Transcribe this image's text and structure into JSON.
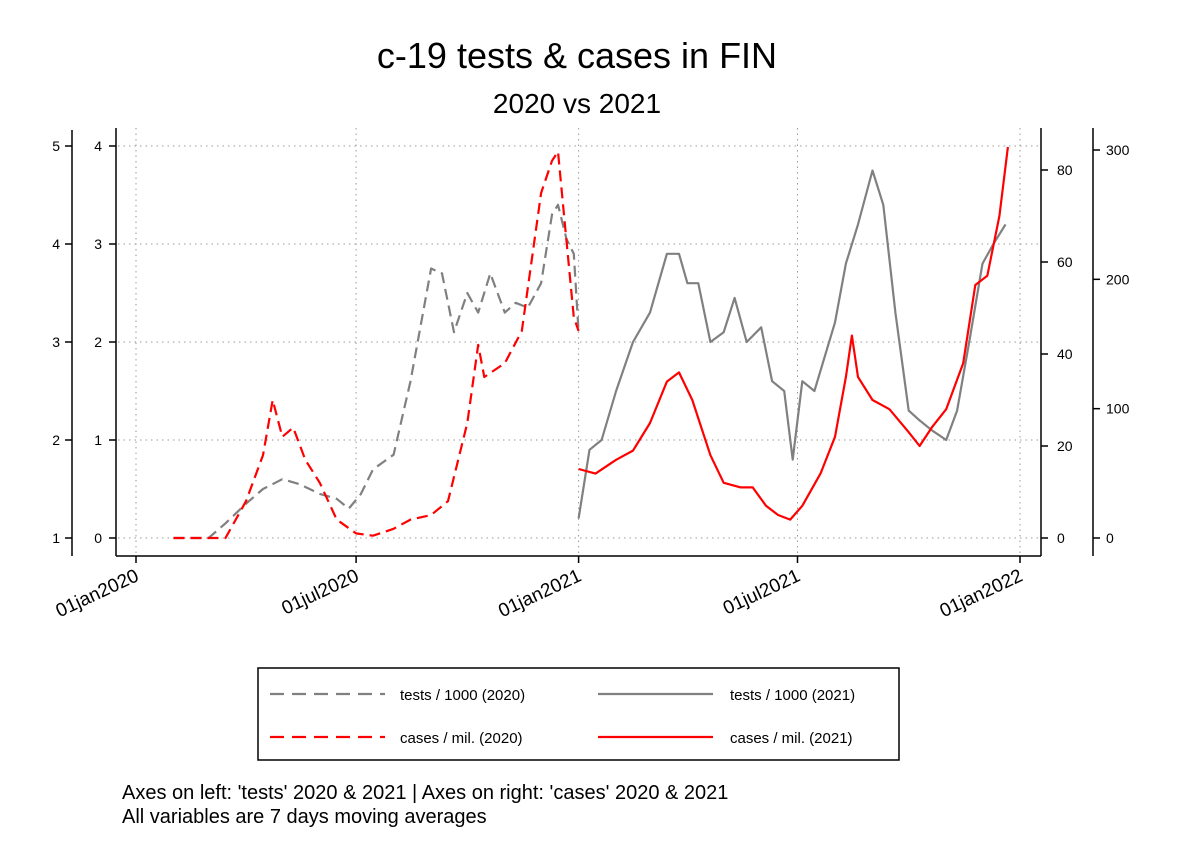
{
  "chart_data": {
    "type": "line",
    "title": "c-19 tests & cases in FIN",
    "subtitle": "2020 vs 2021",
    "x_axis": {
      "type": "date",
      "range": [
        "2020-01-01",
        "2022-01-01"
      ],
      "ticks": [
        "01jan2020",
        "01jul2020",
        "01jan2021",
        "01jul2021",
        "01jan2022"
      ]
    },
    "axes": {
      "left_outer": {
        "ticks": [
          1,
          2,
          3,
          4,
          5
        ],
        "range": [
          1,
          5
        ]
      },
      "left_inner": {
        "ticks": [
          0,
          1,
          2,
          3,
          4
        ],
        "range": [
          0,
          4
        ]
      },
      "right_inner": {
        "ticks": [
          0,
          20,
          40,
          60,
          80
        ],
        "range": [
          0,
          85
        ]
      },
      "right_outer": {
        "ticks": [
          0,
          100,
          200,
          300
        ],
        "range": [
          0,
          300
        ]
      }
    },
    "grid": true,
    "legend_position": "bottom",
    "series": [
      {
        "name": "tests / 1000 (2020)",
        "axis": "left_outer",
        "color": "#808080",
        "style": "dashed",
        "points": [
          [
            "2020-02-01",
            1.0
          ],
          [
            "2020-03-01",
            1.0
          ],
          [
            "2020-03-15",
            1.15
          ],
          [
            "2020-04-01",
            1.35
          ],
          [
            "2020-04-15",
            1.5
          ],
          [
            "2020-05-01",
            1.6
          ],
          [
            "2020-05-15",
            1.55
          ],
          [
            "2020-06-01",
            1.45
          ],
          [
            "2020-06-15",
            1.4
          ],
          [
            "2020-06-25",
            1.3
          ],
          [
            "2020-07-05",
            1.45
          ],
          [
            "2020-07-15",
            1.7
          ],
          [
            "2020-08-01",
            1.85
          ],
          [
            "2020-08-15",
            2.6
          ],
          [
            "2020-09-01",
            3.75
          ],
          [
            "2020-09-10",
            3.7
          ],
          [
            "2020-09-20",
            3.1
          ],
          [
            "2020-10-01",
            3.5
          ],
          [
            "2020-10-10",
            3.3
          ],
          [
            "2020-10-20",
            3.7
          ],
          [
            "2020-11-01",
            3.3
          ],
          [
            "2020-11-10",
            3.4
          ],
          [
            "2020-11-20",
            3.35
          ],
          [
            "2020-12-01",
            3.6
          ],
          [
            "2020-12-10",
            4.3
          ],
          [
            "2020-12-15",
            4.4
          ],
          [
            "2020-12-22",
            4.05
          ],
          [
            "2020-12-28",
            3.9
          ],
          [
            "2021-01-01",
            3.1
          ]
        ]
      },
      {
        "name": "cases / mil. (2020)",
        "axis": "right_inner",
        "color": "#ff0000",
        "style": "dashed",
        "points": [
          [
            "2020-02-01",
            0.0
          ],
          [
            "2020-03-15",
            0.0
          ],
          [
            "2020-04-01",
            8.0
          ],
          [
            "2020-04-15",
            18.0
          ],
          [
            "2020-04-23",
            30.0
          ],
          [
            "2020-05-01",
            22.0
          ],
          [
            "2020-05-10",
            24.0
          ],
          [
            "2020-05-20",
            17.0
          ],
          [
            "2020-06-01",
            12.0
          ],
          [
            "2020-06-15",
            4.0
          ],
          [
            "2020-07-01",
            1.0
          ],
          [
            "2020-07-15",
            0.5
          ],
          [
            "2020-08-01",
            2.0
          ],
          [
            "2020-08-15",
            4.0
          ],
          [
            "2020-09-01",
            5.0
          ],
          [
            "2020-09-15",
            8.0
          ],
          [
            "2020-10-01",
            25.0
          ],
          [
            "2020-10-10",
            42.0
          ],
          [
            "2020-10-15",
            35.0
          ],
          [
            "2020-11-01",
            38.0
          ],
          [
            "2020-11-15",
            45.0
          ],
          [
            "2020-12-01",
            75.0
          ],
          [
            "2020-12-10",
            82.0
          ],
          [
            "2020-12-15",
            84.0
          ],
          [
            "2020-12-20",
            70.0
          ],
          [
            "2020-12-28",
            48.0
          ],
          [
            "2021-01-01",
            45.0
          ]
        ]
      },
      {
        "name": "tests / 1000 (2021)",
        "axis": "left_inner",
        "color": "#808080",
        "style": "solid",
        "points": [
          [
            "2021-01-01",
            0.2
          ],
          [
            "2021-01-10",
            0.9
          ],
          [
            "2021-01-20",
            1.0
          ],
          [
            "2021-02-01",
            1.5
          ],
          [
            "2021-02-15",
            2.0
          ],
          [
            "2021-03-01",
            2.3
          ],
          [
            "2021-03-15",
            2.9
          ],
          [
            "2021-03-25",
            2.9
          ],
          [
            "2021-04-01",
            2.6
          ],
          [
            "2021-04-10",
            2.6
          ],
          [
            "2021-04-20",
            2.0
          ],
          [
            "2021-05-01",
            2.1
          ],
          [
            "2021-05-10",
            2.45
          ],
          [
            "2021-05-20",
            2.0
          ],
          [
            "2021-06-01",
            2.15
          ],
          [
            "2021-06-10",
            1.6
          ],
          [
            "2021-06-20",
            1.5
          ],
          [
            "2021-06-27",
            0.8
          ],
          [
            "2021-07-05",
            1.6
          ],
          [
            "2021-07-15",
            1.5
          ],
          [
            "2021-08-01",
            2.2
          ],
          [
            "2021-08-10",
            2.8
          ],
          [
            "2021-08-20",
            3.2
          ],
          [
            "2021-09-01",
            3.75
          ],
          [
            "2021-09-10",
            3.4
          ],
          [
            "2021-09-20",
            2.3
          ],
          [
            "2021-10-01",
            1.3
          ],
          [
            "2021-10-10",
            1.2
          ],
          [
            "2021-10-20",
            1.1
          ],
          [
            "2021-11-01",
            1.0
          ],
          [
            "2021-11-10",
            1.3
          ],
          [
            "2021-11-20",
            2.0
          ],
          [
            "2021-12-01",
            2.8
          ],
          [
            "2021-12-10",
            3.0
          ],
          [
            "2021-12-20",
            3.2
          ]
        ]
      },
      {
        "name": "cases / mil. (2021)",
        "axis": "right_inner",
        "color": "#ff0000",
        "style": "solid",
        "points": [
          [
            "2021-01-01",
            15.0
          ],
          [
            "2021-01-15",
            14.0
          ],
          [
            "2021-02-01",
            17.0
          ],
          [
            "2021-02-15",
            19.0
          ],
          [
            "2021-03-01",
            25.0
          ],
          [
            "2021-03-15",
            34.0
          ],
          [
            "2021-03-25",
            36.0
          ],
          [
            "2021-04-05",
            30.0
          ],
          [
            "2021-04-20",
            18.0
          ],
          [
            "2021-05-01",
            12.0
          ],
          [
            "2021-05-15",
            11.0
          ],
          [
            "2021-05-25",
            11.0
          ],
          [
            "2021-06-05",
            7.0
          ],
          [
            "2021-06-15",
            5.0
          ],
          [
            "2021-06-25",
            4.0
          ],
          [
            "2021-07-05",
            7.0
          ],
          [
            "2021-07-20",
            14.0
          ],
          [
            "2021-08-01",
            22.0
          ],
          [
            "2021-08-10",
            35.0
          ],
          [
            "2021-08-15",
            44.0
          ],
          [
            "2021-08-20",
            35.0
          ],
          [
            "2021-09-01",
            30.0
          ],
          [
            "2021-09-15",
            28.0
          ],
          [
            "2021-10-01",
            23.0
          ],
          [
            "2021-10-10",
            20.0
          ],
          [
            "2021-10-20",
            24.0
          ],
          [
            "2021-11-01",
            28.0
          ],
          [
            "2021-11-15",
            38.0
          ],
          [
            "2021-11-25",
            55.0
          ],
          [
            "2021-12-05",
            57.0
          ],
          [
            "2021-12-15",
            70.0
          ],
          [
            "2021-12-22",
            85.0
          ]
        ]
      }
    ],
    "legend": [
      {
        "label": "tests / 1000 (2020)",
        "color": "#808080",
        "style": "dashed"
      },
      {
        "label": "tests / 1000 (2021)",
        "color": "#808080",
        "style": "solid"
      },
      {
        "label": "cases / mil. (2020)",
        "color": "#ff0000",
        "style": "dashed"
      },
      {
        "label": "cases / mil. (2021)",
        "color": "#ff0000",
        "style": "solid"
      }
    ],
    "notes": [
      "Axes on left: 'tests' 2020 & 2021 | Axes on right: 'cases' 2020 & 2021",
      "All variables are 7 days moving averages"
    ]
  }
}
